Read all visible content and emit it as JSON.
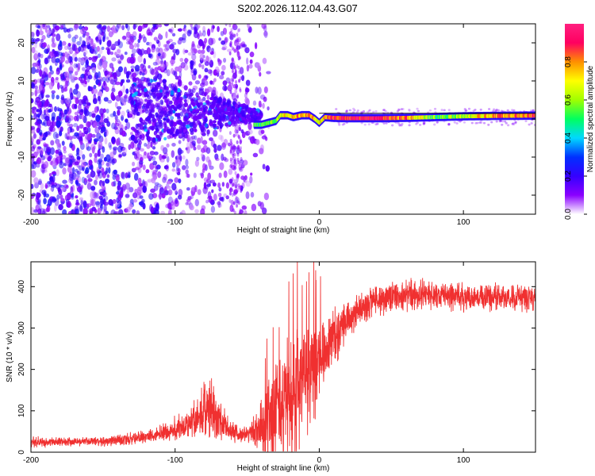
{
  "title": "S202.2026.112.04.43.G07",
  "chart_data": [
    {
      "type": "heatmap",
      "name": "spectrogram",
      "xlabel": "Height of straight line (km)",
      "ylabel": "Frequency (Hz)",
      "xlim": [
        -200,
        150
      ],
      "ylim": [
        -25,
        25
      ],
      "xticks": [
        -200,
        -100,
        0,
        100
      ],
      "yticks": [
        -20,
        -10,
        0,
        10,
        20
      ],
      "colorbar": {
        "label": "Normalized spectral amplitude",
        "range": [
          0,
          1
        ],
        "ticks": [
          0.0,
          0.2,
          0.4,
          0.6,
          0.8
        ],
        "colors": [
          "#ffffff",
          "#8a00ff",
          "#3500ff",
          "#0030ff",
          "#00d8ff",
          "#00ff60",
          "#a0ff00",
          "#ffff00",
          "#ff9000",
          "#ff0060",
          "#ff2080"
        ]
      },
      "ridge": [
        {
          "x": -45,
          "f": -1.5,
          "a": 0.45
        },
        {
          "x": -40,
          "f": -1.5,
          "a": 0.55
        },
        {
          "x": -35,
          "f": -1.0,
          "a": 0.55
        },
        {
          "x": -30,
          "f": -0.5,
          "a": 0.6
        },
        {
          "x": -27,
          "f": 1.0,
          "a": 0.65
        },
        {
          "x": -22,
          "f": 1.0,
          "a": 0.7
        },
        {
          "x": -18,
          "f": 0.5,
          "a": 0.75
        },
        {
          "x": -12,
          "f": 1.0,
          "a": 0.8
        },
        {
          "x": -7,
          "f": 1.0,
          "a": 0.8
        },
        {
          "x": -3,
          "f": 0.0,
          "a": 0.7
        },
        {
          "x": 0,
          "f": -1.0,
          "a": 0.65
        },
        {
          "x": 4,
          "f": 0.5,
          "a": 0.75
        },
        {
          "x": 10,
          "f": 0.3,
          "a": 0.85
        },
        {
          "x": 20,
          "f": 0.2,
          "a": 0.9
        },
        {
          "x": 40,
          "f": 0.2,
          "a": 0.95
        },
        {
          "x": 60,
          "f": 0.3,
          "a": 0.8
        },
        {
          "x": 80,
          "f": 0.5,
          "a": 0.55
        },
        {
          "x": 100,
          "f": 0.7,
          "a": 0.6
        },
        {
          "x": 120,
          "f": 0.8,
          "a": 0.8
        },
        {
          "x": 150,
          "f": 0.9,
          "a": 0.85
        }
      ]
    },
    {
      "type": "line",
      "name": "snr",
      "xlabel": "Height of straight line (km)",
      "ylabel": "SNR (10 * v/v)",
      "xlim": [
        -200,
        150
      ],
      "ylim": [
        0,
        460
      ],
      "xticks": [
        -200,
        -100,
        0,
        100
      ],
      "yticks": [
        0,
        100,
        200,
        300,
        400
      ],
      "color": "#f03030",
      "envelope": [
        {
          "x": -200,
          "base": 25,
          "spread": 15
        },
        {
          "x": -170,
          "base": 25,
          "spread": 12
        },
        {
          "x": -140,
          "base": 28,
          "spread": 15
        },
        {
          "x": -115,
          "base": 40,
          "spread": 20
        },
        {
          "x": -95,
          "base": 60,
          "spread": 40
        },
        {
          "x": -85,
          "base": 80,
          "spread": 60
        },
        {
          "x": -78,
          "base": 110,
          "spread": 90
        },
        {
          "x": -72,
          "base": 90,
          "spread": 80
        },
        {
          "x": -62,
          "base": 50,
          "spread": 30
        },
        {
          "x": -50,
          "base": 40,
          "spread": 20
        },
        {
          "x": -42,
          "base": 60,
          "spread": 60
        },
        {
          "x": -35,
          "base": 90,
          "spread": 120
        },
        {
          "x": -25,
          "base": 120,
          "spread": 170
        },
        {
          "x": -15,
          "base": 170,
          "spread": 170
        },
        {
          "x": -5,
          "base": 200,
          "spread": 140
        },
        {
          "x": 5,
          "base": 250,
          "spread": 100
        },
        {
          "x": 15,
          "base": 300,
          "spread": 70
        },
        {
          "x": 25,
          "base": 340,
          "spread": 50
        },
        {
          "x": 40,
          "base": 370,
          "spread": 45
        },
        {
          "x": 70,
          "base": 380,
          "spread": 45
        },
        {
          "x": 110,
          "base": 375,
          "spread": 40
        },
        {
          "x": 150,
          "base": 370,
          "spread": 35
        }
      ]
    }
  ]
}
